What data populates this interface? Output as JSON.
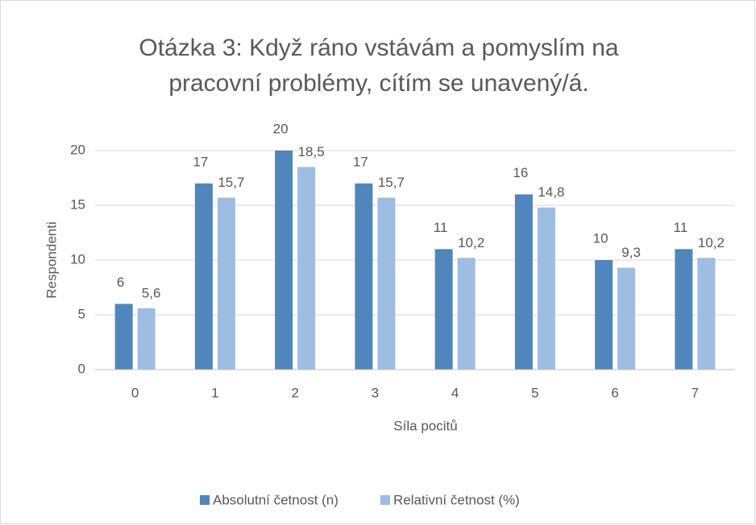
{
  "chart_data": {
    "type": "bar",
    "title": "Otázka 3: Když ráno vstávám a pomyslím na pracovní problémy, cítím se unavený/á.",
    "x_label": "Síla pocitů",
    "y_label": "Respondenti",
    "categories": [
      "0",
      "1",
      "2",
      "3",
      "4",
      "5",
      "6",
      "7"
    ],
    "series": [
      {
        "name": "Absolutní četnost (n)",
        "color": "#4f86be",
        "values": [
          6,
          17,
          20,
          17,
          11,
          16,
          10,
          11
        ]
      },
      {
        "name": "Relativní četnost (%)",
        "color": "#9dbde3",
        "values": [
          5.6,
          15.7,
          18.5,
          15.7,
          10.2,
          14.8,
          9.3,
          10.2
        ],
        "value_labels": [
          "5,6",
          "15,7",
          "18,5",
          "15,7",
          "10,2",
          "14,8",
          "9,3",
          "10,2"
        ]
      }
    ],
    "ylim": [
      0,
      20
    ],
    "yticks": [
      0,
      5,
      10,
      15,
      20
    ],
    "grid": true,
    "legend": "bottom"
  }
}
